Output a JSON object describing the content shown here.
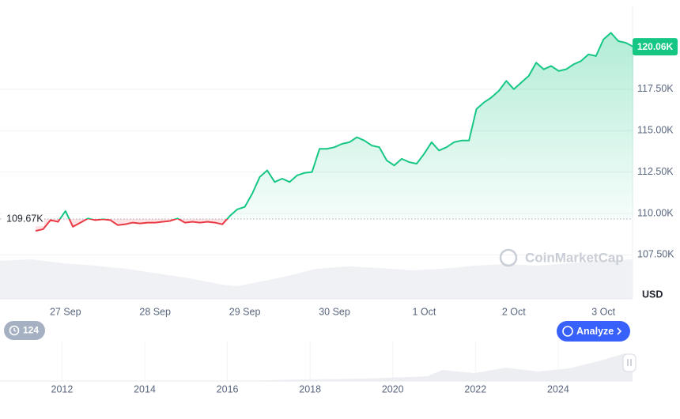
{
  "chart_data": {
    "type": "line",
    "categories": [
      null,
      null,
      null,
      null,
      "27 Sep",
      null,
      null,
      null,
      null,
      null,
      null,
      null,
      null,
      null,
      null,
      null,
      "28 Sep",
      null,
      null,
      null,
      null,
      null,
      null,
      null,
      null,
      null,
      null,
      null,
      "29 Sep",
      null,
      null,
      null,
      null,
      null,
      null,
      null,
      null,
      null,
      null,
      null,
      "30 Sep",
      null,
      null,
      null,
      null,
      null,
      null,
      null,
      null,
      null,
      null,
      null,
      "1 Oct",
      null,
      null,
      null,
      null,
      null,
      null,
      null,
      null,
      null,
      null,
      null,
      "2 Oct",
      null,
      null,
      null,
      null,
      null,
      null,
      null,
      null,
      null,
      null,
      null,
      "3 Oct",
      null,
      null,
      null,
      null
    ],
    "values": [
      108950,
      109050,
      109600,
      109500,
      110150,
      109200,
      109450,
      109700,
      109600,
      109650,
      109600,
      109300,
      109350,
      109450,
      109400,
      109450,
      109450,
      109500,
      109550,
      109700,
      109450,
      109500,
      109450,
      109500,
      109450,
      109350,
      109850,
      110250,
      110400,
      111200,
      112200,
      112600,
      111900,
      112100,
      111900,
      112300,
      112450,
      112500,
      113900,
      113900,
      114000,
      114200,
      114300,
      114600,
      114400,
      114100,
      114000,
      113200,
      112900,
      113300,
      113100,
      113000,
      113600,
      114300,
      113800,
      114000,
      114300,
      114400,
      114400,
      116300,
      116700,
      117000,
      117400,
      118000,
      117500,
      117900,
      118300,
      119100,
      118700,
      118900,
      118600,
      118700,
      119000,
      119200,
      119600,
      119500,
      120500,
      120900,
      120400,
      120300,
      120060
    ],
    "color_up": "#16c784",
    "color_down": "#ea3943",
    "ylim": [
      104850,
      122500
    ],
    "yticks": [
      {
        "value": 107500,
        "label": "107.50K"
      },
      {
        "value": 110000,
        "label": "110.00K"
      },
      {
        "value": 112500,
        "label": "112.50K"
      },
      {
        "value": 115000,
        "label": "115.00K"
      },
      {
        "value": 117500,
        "label": "117.50K"
      }
    ],
    "grid": true,
    "baseline": {
      "value": 109670,
      "label": "109.67K"
    },
    "current_price": {
      "value": 120060,
      "label": "120.06K"
    },
    "unit_label": "USD",
    "watermark": "CoinMarketCap",
    "navigator": {
      "xlim": [
        2010.5,
        2025.8
      ],
      "xticks": [
        2012,
        2014,
        2016,
        2018,
        2020,
        2022,
        2024
      ]
    }
  },
  "ui": {
    "events_badge": "124",
    "analyze_button": "Analyze"
  }
}
